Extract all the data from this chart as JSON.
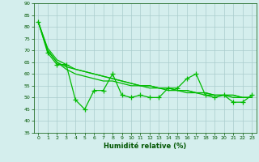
{
  "x": [
    0,
    1,
    2,
    3,
    4,
    5,
    6,
    7,
    8,
    9,
    10,
    11,
    12,
    13,
    14,
    15,
    16,
    17,
    18,
    19,
    20,
    21,
    22,
    23
  ],
  "y_main": [
    82,
    69,
    64,
    64,
    49,
    45,
    53,
    53,
    60,
    51,
    50,
    51,
    50,
    50,
    54,
    54,
    58,
    60,
    51,
    50,
    51,
    48,
    48,
    51
  ],
  "y_smooth1": [
    82,
    70,
    65,
    63,
    62,
    61,
    60,
    59,
    58,
    57,
    56,
    55,
    55,
    54,
    54,
    53,
    53,
    52,
    52,
    51,
    51,
    51,
    50,
    50
  ],
  "y_smooth2": [
    82,
    71,
    66,
    64,
    62,
    61,
    60,
    59,
    58,
    57,
    56,
    55,
    55,
    54,
    54,
    53,
    53,
    52,
    52,
    51,
    51,
    51,
    50,
    50
  ],
  "y_smooth3": [
    82,
    70,
    65,
    62,
    60,
    59,
    58,
    57,
    57,
    56,
    55,
    55,
    54,
    54,
    53,
    53,
    52,
    52,
    51,
    51,
    51,
    50,
    50,
    50
  ],
  "line_color": "#00bb00",
  "marker": "+",
  "background_color": "#d4eeed",
  "grid_color": "#aacccc",
  "ylim": [
    35,
    90
  ],
  "yticks": [
    35,
    40,
    45,
    50,
    55,
    60,
    65,
    70,
    75,
    80,
    85,
    90
  ],
  "xlim": [
    -0.5,
    23.5
  ],
  "xticks": [
    0,
    1,
    2,
    3,
    4,
    5,
    6,
    7,
    8,
    9,
    10,
    11,
    12,
    13,
    14,
    15,
    16,
    17,
    18,
    19,
    20,
    21,
    22,
    23
  ],
  "xlabel": "Humidité relative (%)",
  "xlabel_color": "#005500",
  "tick_color": "#005500",
  "axis_color": "#005500"
}
